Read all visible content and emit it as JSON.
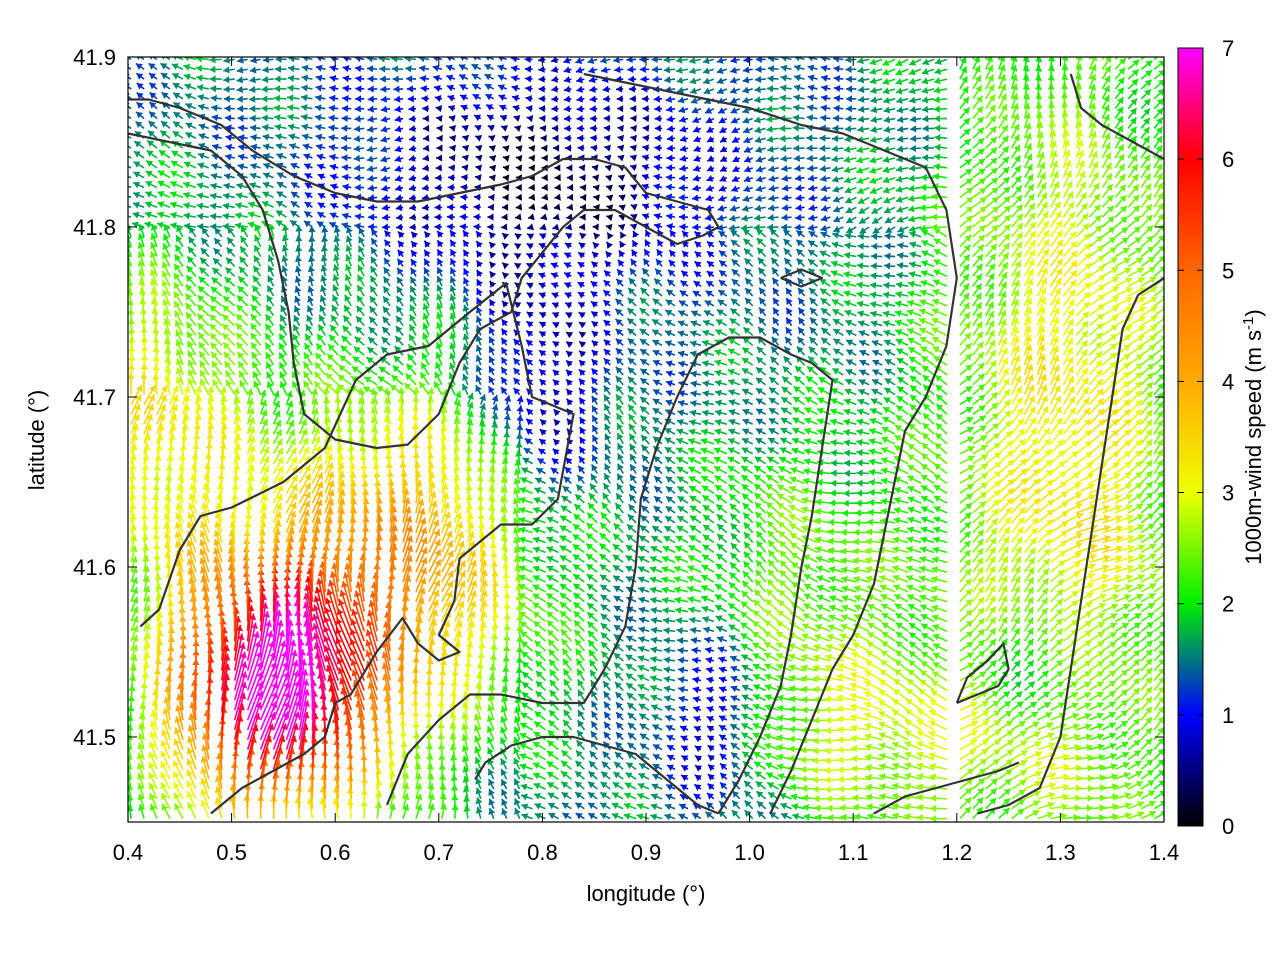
{
  "chart_data": {
    "type": "vector-field",
    "xlabel": "longitude (°)",
    "ylabel": "latitude (°)",
    "colorbar_label": "1000m-wind speed (m s",
    "colorbar_label_sup": "-1",
    "colorbar_label_close": ")",
    "xlim": [
      0.4,
      1.4
    ],
    "ylim": [
      41.45,
      41.9
    ],
    "x_ticks": [
      0.4,
      0.5,
      0.6,
      0.7,
      0.8,
      0.9,
      1.0,
      1.1,
      1.2,
      1.3,
      1.4
    ],
    "x_tick_labels": [
      "0.4",
      "0.5",
      "0.6",
      "0.7",
      "0.8",
      "0.9",
      "1.0",
      "1.1",
      "1.2",
      "1.3",
      "1.4"
    ],
    "y_ticks": [
      41.5,
      41.6,
      41.7,
      41.8,
      41.9
    ],
    "y_tick_labels": [
      "41.5",
      "41.6",
      "41.7",
      "41.8",
      "41.9"
    ],
    "colorbar_range": [
      0,
      7
    ],
    "colorbar_ticks": [
      0,
      1,
      2,
      3,
      4,
      5,
      6,
      7
    ],
    "colorbar_tick_labels": [
      "0",
      "1",
      "2",
      "3",
      "4",
      "5",
      "6",
      "7"
    ],
    "colormap_stops": [
      {
        "value": 0,
        "color": "#000000"
      },
      {
        "value": 1,
        "color": "#0000ff"
      },
      {
        "value": 2,
        "color": "#00ee00"
      },
      {
        "value": 3,
        "color": "#eeff00"
      },
      {
        "value": 4,
        "color": "#ffaa00"
      },
      {
        "value": 5,
        "color": "#ff6600"
      },
      {
        "value": 6,
        "color": "#ff0000"
      },
      {
        "value": 7,
        "color": "#ff00ff"
      }
    ],
    "grid": false,
    "contour_color": "#333333",
    "contours": [
      [
        [
          0.412,
          41.565
        ],
        [
          0.43,
          41.575
        ],
        [
          0.45,
          41.61
        ],
        [
          0.47,
          41.63
        ],
        [
          0.5,
          41.635
        ],
        [
          0.55,
          41.65
        ],
        [
          0.59,
          41.67
        ],
        [
          0.62,
          41.71
        ],
        [
          0.65,
          41.725
        ],
        [
          0.69,
          41.73
        ],
        [
          0.73,
          41.75
        ],
        [
          0.765,
          41.767
        ],
        [
          0.78,
          41.73
        ],
        [
          0.79,
          41.7
        ],
        [
          0.81,
          41.695
        ],
        [
          0.83,
          41.69
        ],
        [
          0.815,
          41.64
        ],
        [
          0.79,
          41.625
        ],
        [
          0.76,
          41.625
        ],
        [
          0.74,
          41.615
        ],
        [
          0.72,
          41.605
        ],
        [
          0.715,
          41.58
        ],
        [
          0.7,
          41.56
        ],
        [
          0.72,
          41.55
        ],
        [
          0.7,
          41.545
        ],
        [
          0.68,
          41.555
        ],
        [
          0.665,
          41.57
        ],
        [
          0.64,
          41.55
        ],
        [
          0.625,
          41.535
        ],
        [
          0.615,
          41.525
        ],
        [
          0.6,
          41.52
        ],
        [
          0.59,
          41.5
        ],
        [
          0.57,
          41.49
        ],
        [
          0.54,
          41.48
        ],
        [
          0.51,
          41.47
        ],
        [
          0.48,
          41.455
        ]
      ],
      [
        [
          0.65,
          41.46
        ],
        [
          0.67,
          41.49
        ],
        [
          0.7,
          41.51
        ],
        [
          0.73,
          41.525
        ],
        [
          0.76,
          41.525
        ],
        [
          0.8,
          41.52
        ],
        [
          0.84,
          41.52
        ],
        [
          0.86,
          41.54
        ],
        [
          0.88,
          41.565
        ],
        [
          0.89,
          41.6
        ],
        [
          0.895,
          41.64
        ],
        [
          0.91,
          41.67
        ],
        [
          0.93,
          41.7
        ],
        [
          0.95,
          41.725
        ],
        [
          0.98,
          41.735
        ],
        [
          1.01,
          41.735
        ],
        [
          1.04,
          41.725
        ],
        [
          1.06,
          41.72
        ],
        [
          1.08,
          41.71
        ],
        [
          1.07,
          41.67
        ],
        [
          1.06,
          41.63
        ],
        [
          1.05,
          41.6
        ],
        [
          1.04,
          41.56
        ],
        [
          1.03,
          41.53
        ],
        [
          1.01,
          41.5
        ],
        [
          0.99,
          41.475
        ],
        [
          0.97,
          41.455
        ]
      ],
      [
        [
          0.735,
          41.475
        ],
        [
          0.745,
          41.485
        ],
        [
          0.77,
          41.495
        ],
        [
          0.8,
          41.5
        ],
        [
          0.83,
          41.5
        ],
        [
          0.86,
          41.495
        ],
        [
          0.89,
          41.49
        ],
        [
          0.91,
          41.48
        ],
        [
          0.93,
          41.47
        ],
        [
          0.95,
          41.46
        ],
        [
          0.97,
          41.455
        ]
      ],
      [
        [
          1.02,
          41.455
        ],
        [
          1.04,
          41.48
        ],
        [
          1.06,
          41.51
        ],
        [
          1.08,
          41.54
        ],
        [
          1.1,
          41.56
        ],
        [
          1.12,
          41.59
        ],
        [
          1.13,
          41.62
        ],
        [
          1.14,
          41.65
        ],
        [
          1.15,
          41.68
        ],
        [
          1.17,
          41.7
        ],
        [
          1.19,
          41.73
        ],
        [
          1.2,
          41.77
        ],
        [
          1.19,
          41.81
        ],
        [
          1.17,
          41.835
        ],
        [
          1.13,
          41.845
        ],
        [
          1.09,
          41.855
        ],
        [
          1.05,
          41.86
        ],
        [
          1.0,
          41.87
        ],
        [
          0.96,
          41.875
        ],
        [
          0.92,
          41.88
        ],
        [
          0.88,
          41.885
        ],
        [
          0.84,
          41.89
        ]
      ],
      [
        [
          0.4,
          41.855
        ],
        [
          0.44,
          41.85
        ],
        [
          0.48,
          41.845
        ],
        [
          0.51,
          41.83
        ],
        [
          0.53,
          41.81
        ],
        [
          0.545,
          41.78
        ],
        [
          0.555,
          41.75
        ],
        [
          0.56,
          41.72
        ],
        [
          0.57,
          41.69
        ],
        [
          0.6,
          41.675
        ],
        [
          0.64,
          41.67
        ],
        [
          0.67,
          41.672
        ],
        [
          0.7,
          41.69
        ],
        [
          0.72,
          41.72
        ],
        [
          0.74,
          41.74
        ],
        [
          0.77,
          41.75
        ],
        [
          0.78,
          41.77
        ],
        [
          0.8,
          41.785
        ],
        [
          0.82,
          41.8
        ],
        [
          0.84,
          41.81
        ],
        [
          0.87,
          41.81
        ],
        [
          0.9,
          41.8
        ],
        [
          0.93,
          41.79
        ],
        [
          0.955,
          41.795
        ],
        [
          0.97,
          41.8
        ],
        [
          0.96,
          41.81
        ],
        [
          0.93,
          41.815
        ],
        [
          0.9,
          41.82
        ],
        [
          0.88,
          41.835
        ],
        [
          0.85,
          41.84
        ],
        [
          0.82,
          41.84
        ],
        [
          0.79,
          41.83
        ],
        [
          0.76,
          41.825
        ],
        [
          0.72,
          41.82
        ],
        [
          0.68,
          41.815
        ],
        [
          0.64,
          41.815
        ],
        [
          0.6,
          41.82
        ],
        [
          0.56,
          41.83
        ],
        [
          0.52,
          41.845
        ],
        [
          0.49,
          41.86
        ],
        [
          0.45,
          41.87
        ],
        [
          0.42,
          41.875
        ],
        [
          0.4,
          41.875
        ]
      ],
      [
        [
          1.22,
          41.455
        ],
        [
          1.25,
          41.46
        ],
        [
          1.28,
          41.47
        ],
        [
          1.3,
          41.5
        ],
        [
          1.31,
          41.54
        ],
        [
          1.32,
          41.58
        ],
        [
          1.33,
          41.62
        ],
        [
          1.34,
          41.66
        ],
        [
          1.35,
          41.7
        ],
        [
          1.36,
          41.74
        ],
        [
          1.375,
          41.76
        ],
        [
          1.4,
          41.77
        ]
      ],
      [
        [
          1.12,
          41.455
        ],
        [
          1.15,
          41.465
        ],
        [
          1.18,
          41.47
        ],
        [
          1.21,
          41.475
        ],
        [
          1.24,
          41.48
        ],
        [
          1.26,
          41.485
        ]
      ],
      [
        [
          1.2,
          41.52
        ],
        [
          1.22,
          41.525
        ],
        [
          1.24,
          41.53
        ],
        [
          1.25,
          41.54
        ],
        [
          1.245,
          41.555
        ],
        [
          1.23,
          41.545
        ],
        [
          1.21,
          41.535
        ],
        [
          1.2,
          41.52
        ]
      ],
      [
        [
          1.03,
          41.77
        ],
        [
          1.05,
          41.775
        ],
        [
          1.07,
          41.77
        ],
        [
          1.05,
          41.765
        ],
        [
          1.03,
          41.77
        ]
      ],
      [
        [
          1.4,
          41.84
        ],
        [
          1.37,
          41.85
        ],
        [
          1.34,
          41.86
        ],
        [
          1.32,
          41.87
        ],
        [
          1.31,
          41.89
        ]
      ]
    ]
  }
}
